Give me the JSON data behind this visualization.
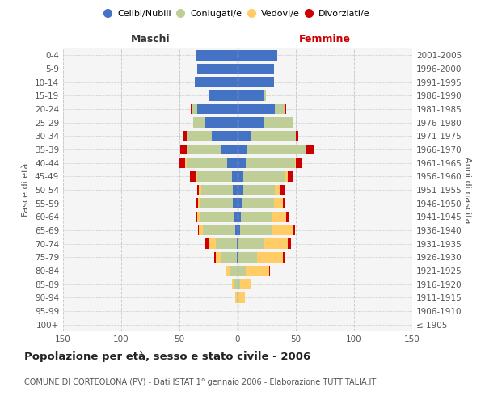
{
  "age_groups": [
    "100+",
    "95-99",
    "90-94",
    "85-89",
    "80-84",
    "75-79",
    "70-74",
    "65-69",
    "60-64",
    "55-59",
    "50-54",
    "45-49",
    "40-44",
    "35-39",
    "30-34",
    "25-29",
    "20-24",
    "15-19",
    "10-14",
    "5-9",
    "0-4"
  ],
  "birth_years": [
    "≤ 1905",
    "1906-1910",
    "1911-1915",
    "1916-1920",
    "1921-1925",
    "1926-1930",
    "1931-1935",
    "1936-1940",
    "1941-1945",
    "1946-1950",
    "1951-1955",
    "1956-1960",
    "1961-1965",
    "1966-1970",
    "1971-1975",
    "1976-1980",
    "1981-1985",
    "1986-1990",
    "1991-1995",
    "1996-2000",
    "2001-2005"
  ],
  "males": {
    "celibi": [
      0,
      0,
      0,
      0,
      0,
      1,
      1,
      2,
      3,
      4,
      4,
      5,
      9,
      14,
      22,
      28,
      35,
      25,
      37,
      35,
      36
    ],
    "coniugati": [
      0,
      0,
      1,
      3,
      6,
      13,
      18,
      28,
      29,
      28,
      27,
      30,
      35,
      30,
      22,
      10,
      4,
      0,
      0,
      0,
      0
    ],
    "vedovi": [
      0,
      0,
      1,
      2,
      4,
      5,
      6,
      3,
      3,
      2,
      2,
      1,
      1,
      0,
      0,
      0,
      0,
      0,
      0,
      0,
      0
    ],
    "divorziati": [
      0,
      0,
      0,
      0,
      0,
      1,
      3,
      1,
      1,
      2,
      2,
      5,
      5,
      5,
      3,
      0,
      1,
      0,
      0,
      0,
      0
    ]
  },
  "females": {
    "nubili": [
      0,
      0,
      0,
      0,
      0,
      1,
      1,
      2,
      3,
      4,
      5,
      5,
      7,
      8,
      12,
      22,
      32,
      22,
      31,
      31,
      34
    ],
    "coniugate": [
      0,
      0,
      0,
      2,
      7,
      16,
      22,
      27,
      27,
      27,
      27,
      35,
      42,
      50,
      38,
      25,
      9,
      2,
      0,
      0,
      0
    ],
    "vedove": [
      0,
      1,
      6,
      10,
      20,
      22,
      20,
      18,
      12,
      8,
      5,
      3,
      1,
      0,
      0,
      0,
      0,
      0,
      0,
      0,
      0
    ],
    "divorziate": [
      0,
      0,
      0,
      0,
      1,
      2,
      3,
      2,
      2,
      2,
      3,
      5,
      5,
      7,
      2,
      0,
      1,
      0,
      0,
      0,
      0
    ]
  },
  "colors": {
    "celibi_nubili": "#4472C4",
    "coniugati": "#BFCD96",
    "vedovi": "#FFCC66",
    "divorziati": "#CC0000"
  },
  "xlim": 150,
  "title": "Popolazione per età, sesso e stato civile - 2006",
  "subtitle": "COMUNE DI CORTEOLONA (PV) - Dati ISTAT 1° gennaio 2006 - Elaborazione TUTTITALIA.IT",
  "ylabel_left": "Fasce di età",
  "ylabel_right": "Anni di nascita",
  "xlabel_left": "Maschi",
  "xlabel_right": "Femmine",
  "legend_labels": [
    "Celibi/Nubili",
    "Coniugati/e",
    "Vedovi/e",
    "Divorziati/e"
  ],
  "background_color": "#ffffff",
  "plot_bg_color": "#f5f5f5"
}
